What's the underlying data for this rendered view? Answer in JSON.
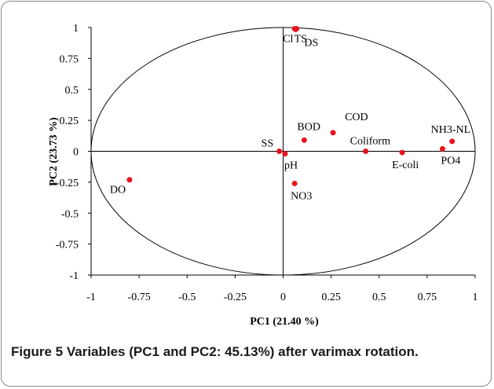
{
  "chart_data": {
    "type": "scatter",
    "xlabel": "PC1 (21.40 %)",
    "ylabel": "PC2 (23.73 %)",
    "xlim": [
      -1,
      1
    ],
    "ylim": [
      -1,
      1
    ],
    "x_ticks": [
      "-1",
      "-0.75",
      "-0.5",
      "-0.25",
      "0",
      "0.25",
      "0.5",
      "0.75",
      "1"
    ],
    "y_ticks": [
      "1",
      "0.75",
      "0.5",
      "0.25",
      "0",
      "-0.25",
      "-0.5",
      "-0.75",
      "-1"
    ],
    "points": [
      {
        "label": "Cl",
        "x": 0.06,
        "y": 0.99
      },
      {
        "label": "TS",
        "x": 0.07,
        "y": 0.99
      },
      {
        "label": "DS",
        "x": 0.065,
        "y": 0.985
      },
      {
        "label": "COD",
        "x": 0.26,
        "y": 0.15
      },
      {
        "label": "BOD",
        "x": 0.11,
        "y": 0.09
      },
      {
        "label": "SS",
        "x": -0.02,
        "y": 0.0
      },
      {
        "label": "pH",
        "x": 0.01,
        "y": -0.02
      },
      {
        "label": "Coliform",
        "x": 0.43,
        "y": 0.0
      },
      {
        "label": "E-coli",
        "x": 0.62,
        "y": -0.01
      },
      {
        "label": "NH3-NL",
        "x": 0.88,
        "y": 0.08
      },
      {
        "label": "PO4",
        "x": 0.83,
        "y": 0.02
      },
      {
        "label": "NO3",
        "x": 0.06,
        "y": -0.26
      },
      {
        "label": "DO",
        "x": -0.8,
        "y": -0.23
      }
    ],
    "point_color": "#e8141e",
    "unit_circle": true,
    "grid": false
  },
  "caption": {
    "label": "Figure 5",
    "text": " Variables (PC1 and PC2: 45.13%) after varimax rotation."
  }
}
